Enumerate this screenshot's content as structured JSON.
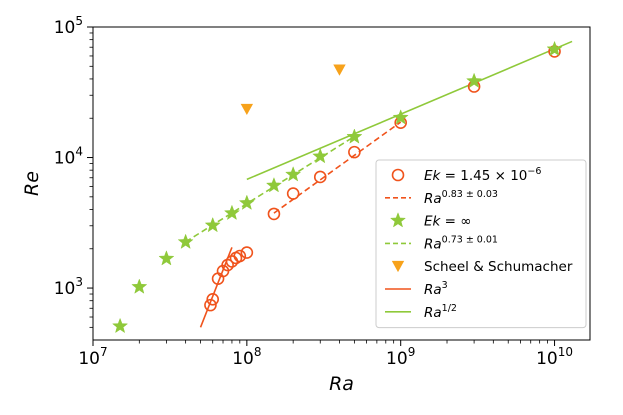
{
  "chart_data": {
    "type": "scatter",
    "xscale": "log",
    "yscale": "log",
    "xlim": [
      10000000,
      17000000000
    ],
    "ylim": [
      400,
      100000
    ],
    "xlabel": "Ra",
    "ylabel": "Re",
    "grid": false,
    "legend_position": "lower-right",
    "x_ticks": [
      {
        "value": 10000000,
        "base": "10",
        "exp": "7"
      },
      {
        "value": 100000000,
        "base": "10",
        "exp": "8"
      },
      {
        "value": 1000000000,
        "base": "10",
        "exp": "9"
      },
      {
        "value": 10000000000,
        "base": "10",
        "exp": "10"
      }
    ],
    "y_ticks": [
      {
        "value": 1000,
        "base": "10",
        "exp": "3"
      },
      {
        "value": 10000,
        "base": "10",
        "exp": "4"
      },
      {
        "value": 100000,
        "base": "10",
        "exp": "5"
      }
    ],
    "series": [
      {
        "name_parts": [
          {
            "text": "Ek",
            "italic": true
          },
          {
            "text": " = 1.45 × 10"
          },
          {
            "text": "−6",
            "sup": true
          }
        ],
        "marker": "circle",
        "color": "#f0531c",
        "x": [
          58000000,
          60000000,
          65000000,
          70000000,
          75000000,
          80000000,
          85000000,
          90000000,
          100000000,
          150000000,
          200000000,
          300000000,
          500000000,
          1000000000,
          3000000000,
          10000000000
        ],
        "y": [
          740,
          820,
          1180,
          1350,
          1500,
          1600,
          1700,
          1760,
          1870,
          3700,
          5300,
          7100,
          11000,
          18500,
          35000,
          65000
        ]
      },
      {
        "name_parts": [
          {
            "text": "Ra",
            "italic": true
          },
          {
            "text": "0.83 ± 0.03",
            "sup": true
          }
        ],
        "kind": "fit-line",
        "dash": true,
        "color": "#f0531c",
        "x": [
          150000000,
          1000000000
        ],
        "y": [
          3750,
          18700
        ]
      },
      {
        "name_parts": [
          {
            "text": "Ek",
            "italic": true
          },
          {
            "text": " = ∞"
          }
        ],
        "marker": "star",
        "color": "#8fc93a",
        "x": [
          15000000,
          20000000,
          30000000,
          40000000,
          60000000,
          80000000,
          100000000,
          150000000,
          200000000,
          300000000,
          500000000,
          1000000000,
          3000000000,
          10000000000
        ],
        "y": [
          510,
          1020,
          1680,
          2250,
          3020,
          3750,
          4480,
          6100,
          7400,
          10200,
          14400,
          20200,
          38500,
          67500
        ]
      },
      {
        "name_parts": [
          {
            "text": "Ra",
            "italic": true
          },
          {
            "text": "0.73 ± 0.01",
            "sup": true
          }
        ],
        "kind": "fit-line",
        "dash": true,
        "color": "#8fc93a",
        "x": [
          40000000,
          500000000
        ],
        "y": [
          2260,
          14500
        ]
      },
      {
        "name_parts": [
          {
            "text": "Scheel & Schumacher"
          }
        ],
        "marker": "triangle-down",
        "color": "#f7a21b",
        "x": [
          100000000,
          400000000
        ],
        "y": [
          23500,
          47000
        ]
      },
      {
        "name_parts": [
          {
            "text": "Ra",
            "italic": true
          },
          {
            "text": "3",
            "sup": true
          }
        ],
        "kind": "reference-line",
        "dash": false,
        "color": "#f0531c",
        "x": [
          50000000,
          80000000
        ],
        "y": [
          500,
          2050
        ]
      },
      {
        "name_parts": [
          {
            "text": "Ra",
            "italic": true
          },
          {
            "text": "1/2",
            "sup": true
          }
        ],
        "kind": "reference-line",
        "dash": false,
        "color": "#8fc93a",
        "x": [
          100000000,
          13000000000
        ],
        "y": [
          6800,
          77500
        ]
      }
    ]
  }
}
